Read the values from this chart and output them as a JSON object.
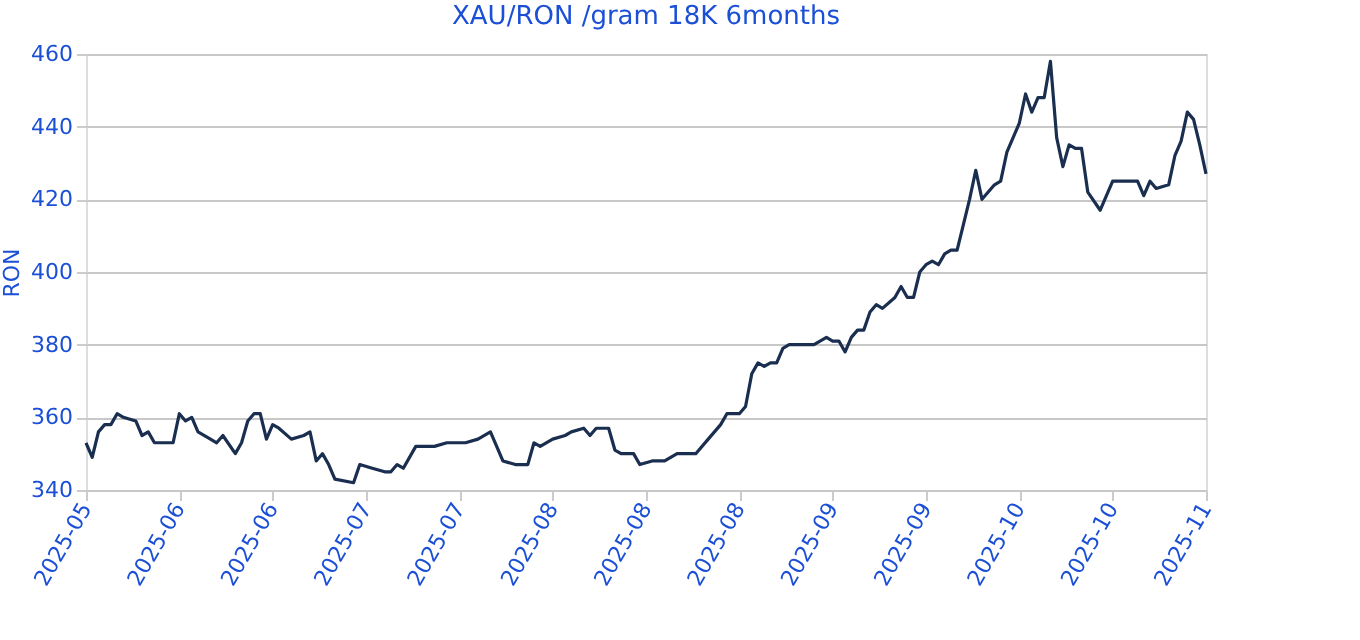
{
  "chart_data": {
    "type": "line",
    "title": "XAU/RON /gram 18K 6months",
    "ylabel": "RON",
    "xlim": [
      "2025-05-18",
      "2025-11-14"
    ],
    "xticks": [
      {
        "value": "2025-05-18",
        "label": "2025-05"
      },
      {
        "value": "2025-06-02",
        "label": "2025-06"
      },
      {
        "value": "2025-06-17",
        "label": "2025-06"
      },
      {
        "value": "2025-07-02",
        "label": "2025-07"
      },
      {
        "value": "2025-07-17",
        "label": "2025-07"
      },
      {
        "value": "2025-08-01",
        "label": "2025-08"
      },
      {
        "value": "2025-08-16",
        "label": "2025-08"
      },
      {
        "value": "2025-08-31",
        "label": "2025-08"
      },
      {
        "value": "2025-09-15",
        "label": "2025-09"
      },
      {
        "value": "2025-09-30",
        "label": "2025-09"
      },
      {
        "value": "2025-10-15",
        "label": "2025-10"
      },
      {
        "value": "2025-10-30",
        "label": "2025-10"
      },
      {
        "value": "2025-11-14",
        "label": "2025-11"
      }
    ],
    "ylim": [
      340,
      460
    ],
    "yticks": [
      340,
      360,
      380,
      400,
      420,
      440,
      460
    ],
    "grid": "y",
    "series": [
      {
        "color": "#1a2e50",
        "x": [
          "2025-05-18",
          "2025-05-19",
          "2025-05-20",
          "2025-05-21",
          "2025-05-22",
          "2025-05-23",
          "2025-05-24",
          "2025-05-26",
          "2025-05-27",
          "2025-05-28",
          "2025-05-29",
          "2025-05-31",
          "2025-06-01",
          "2025-06-02",
          "2025-06-03",
          "2025-06-04",
          "2025-06-05",
          "2025-06-07",
          "2025-06-08",
          "2025-06-09",
          "2025-06-11",
          "2025-06-12",
          "2025-06-13",
          "2025-06-14",
          "2025-06-15",
          "2025-06-16",
          "2025-06-17",
          "2025-06-18",
          "2025-06-20",
          "2025-06-22",
          "2025-06-23",
          "2025-06-24",
          "2025-06-25",
          "2025-06-26",
          "2025-06-27",
          "2025-06-30",
          "2025-07-01",
          "2025-07-03",
          "2025-07-05",
          "2025-07-06",
          "2025-07-07",
          "2025-07-08",
          "2025-07-10",
          "2025-07-13",
          "2025-07-15",
          "2025-07-18",
          "2025-07-20",
          "2025-07-22",
          "2025-07-23",
          "2025-07-24",
          "2025-07-26",
          "2025-07-28",
          "2025-07-29",
          "2025-07-30",
          "2025-08-01",
          "2025-08-03",
          "2025-08-04",
          "2025-08-06",
          "2025-08-07",
          "2025-08-08",
          "2025-08-10",
          "2025-08-11",
          "2025-08-12",
          "2025-08-14",
          "2025-08-15",
          "2025-08-17",
          "2025-08-19",
          "2025-08-21",
          "2025-08-22",
          "2025-08-24",
          "2025-08-26",
          "2025-08-28",
          "2025-08-29",
          "2025-08-31",
          "2025-09-01",
          "2025-09-02",
          "2025-09-03",
          "2025-09-04",
          "2025-09-05",
          "2025-09-06",
          "2025-09-07",
          "2025-09-08",
          "2025-09-09",
          "2025-09-11",
          "2025-09-12",
          "2025-09-14",
          "2025-09-15",
          "2025-09-16",
          "2025-09-17",
          "2025-09-18",
          "2025-09-19",
          "2025-09-20",
          "2025-09-21",
          "2025-09-22",
          "2025-09-23",
          "2025-09-25",
          "2025-09-26",
          "2025-09-27",
          "2025-09-28",
          "2025-09-29",
          "2025-09-30",
          "2025-10-01",
          "2025-10-02",
          "2025-10-03",
          "2025-10-04",
          "2025-10-05",
          "2025-10-06",
          "2025-10-07",
          "2025-10-08",
          "2025-10-09",
          "2025-10-10",
          "2025-10-11",
          "2025-10-12",
          "2025-10-13",
          "2025-10-14",
          "2025-10-15",
          "2025-10-16",
          "2025-10-17",
          "2025-10-18",
          "2025-10-19",
          "2025-10-20",
          "2025-10-21",
          "2025-10-22",
          "2025-10-23",
          "2025-10-24",
          "2025-10-25",
          "2025-10-26",
          "2025-10-28",
          "2025-10-29",
          "2025-10-30",
          "2025-11-03",
          "2025-11-04",
          "2025-11-05",
          "2025-11-06",
          "2025-11-08",
          "2025-11-09",
          "2025-11-10",
          "2025-11-11",
          "2025-11-12",
          "2025-11-13",
          "2025-11-14"
        ],
        "values": [
          353,
          349,
          356,
          358,
          358,
          361,
          360,
          359,
          355,
          356,
          353,
          353,
          353,
          361,
          359,
          360,
          356,
          354,
          353,
          355,
          350,
          353,
          359,
          361,
          361,
          354,
          358,
          357,
          354,
          355,
          356,
          348,
          350,
          347,
          343,
          342,
          347,
          346,
          345,
          345,
          347,
          346,
          352,
          352,
          353,
          353,
          354,
          356,
          352,
          348,
          347,
          347,
          353,
          352,
          354,
          355,
          356,
          357,
          355,
          357,
          357,
          351,
          350,
          350,
          347,
          348,
          348,
          350,
          350,
          350,
          354,
          358,
          361,
          361,
          363,
          372,
          375,
          374,
          375,
          375,
          379,
          380,
          380,
          380,
          380,
          382,
          381,
          381,
          378,
          382,
          384,
          384,
          389,
          391,
          390,
          393,
          396,
          393,
          393,
          400,
          402,
          403,
          402,
          405,
          406,
          406,
          413,
          420,
          428,
          420,
          422,
          424,
          425,
          433,
          437,
          441,
          449,
          444,
          448,
          448,
          458,
          437,
          429,
          435,
          434,
          434,
          422,
          417,
          421,
          425,
          425,
          421,
          425,
          423,
          424,
          432,
          436,
          444,
          442,
          435,
          427
        ]
      }
    ]
  }
}
